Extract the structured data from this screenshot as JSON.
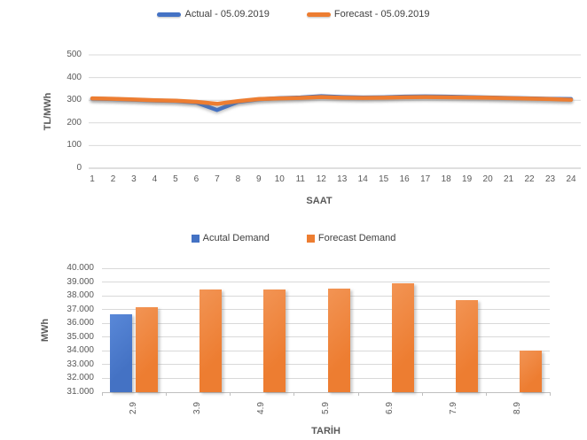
{
  "colors": {
    "actual_blue": "#4472C4",
    "forecast_orange": "#ED7D31",
    "gridline": "#D9D9D9",
    "axis_line": "#BFBFBF",
    "tick_text": "#595959"
  },
  "price_chart": {
    "y_axis_title": "TL/MWh",
    "x_axis_title": "SAAT",
    "y_ticks": [
      "500",
      "400",
      "300",
      "200",
      "100",
      "0"
    ]
  },
  "demand_chart": {
    "y_axis_title": "MWh",
    "x_axis_title": "TARİH",
    "y_ticks": [
      "40.000",
      "39.000",
      "38.000",
      "37.000",
      "36.000",
      "35.000",
      "34.000",
      "33.000",
      "32.000",
      "31.000"
    ]
  },
  "chart_data": [
    {
      "type": "line",
      "title": "",
      "xlabel": "SAAT",
      "ylabel": "TL/MWh",
      "ylim": [
        0,
        500
      ],
      "grid": true,
      "legend_position": "top",
      "x": [
        1,
        2,
        3,
        4,
        5,
        6,
        7,
        8,
        9,
        10,
        11,
        12,
        13,
        14,
        15,
        16,
        17,
        18,
        19,
        20,
        21,
        22,
        23,
        24
      ],
      "series": [
        {
          "name": "Actual - 05.09.2019",
          "color": "#4472C4",
          "values": [
            307,
            305,
            302,
            299,
            297,
            290,
            257,
            293,
            304,
            309,
            312,
            318,
            314,
            312,
            313,
            316,
            317,
            316,
            314,
            312,
            310,
            308,
            306,
            305
          ]
        },
        {
          "name": "Forecast - 05.09.2019",
          "color": "#ED7D31",
          "values": [
            308,
            306,
            303,
            300,
            298,
            293,
            284,
            296,
            305,
            308,
            310,
            314,
            311,
            310,
            311,
            313,
            314,
            313,
            312,
            311,
            309,
            307,
            305,
            302
          ]
        }
      ]
    },
    {
      "type": "bar",
      "title": "",
      "xlabel": "TARİH",
      "ylabel": "MWh",
      "ylim": [
        31000,
        40000
      ],
      "grid": true,
      "legend_position": "top",
      "categories": [
        "2.9",
        "3.9",
        "4.9",
        "5.9",
        "6.9",
        "7.9",
        "8.9"
      ],
      "series": [
        {
          "name": "Acutal Demand",
          "color": "#4472C4",
          "values": [
            36650,
            null,
            null,
            null,
            null,
            null,
            null
          ]
        },
        {
          "name": "Forecast Demand",
          "color": "#ED7D31",
          "values": [
            37150,
            38450,
            38450,
            38500,
            38900,
            37700,
            34050
          ]
        }
      ]
    }
  ]
}
